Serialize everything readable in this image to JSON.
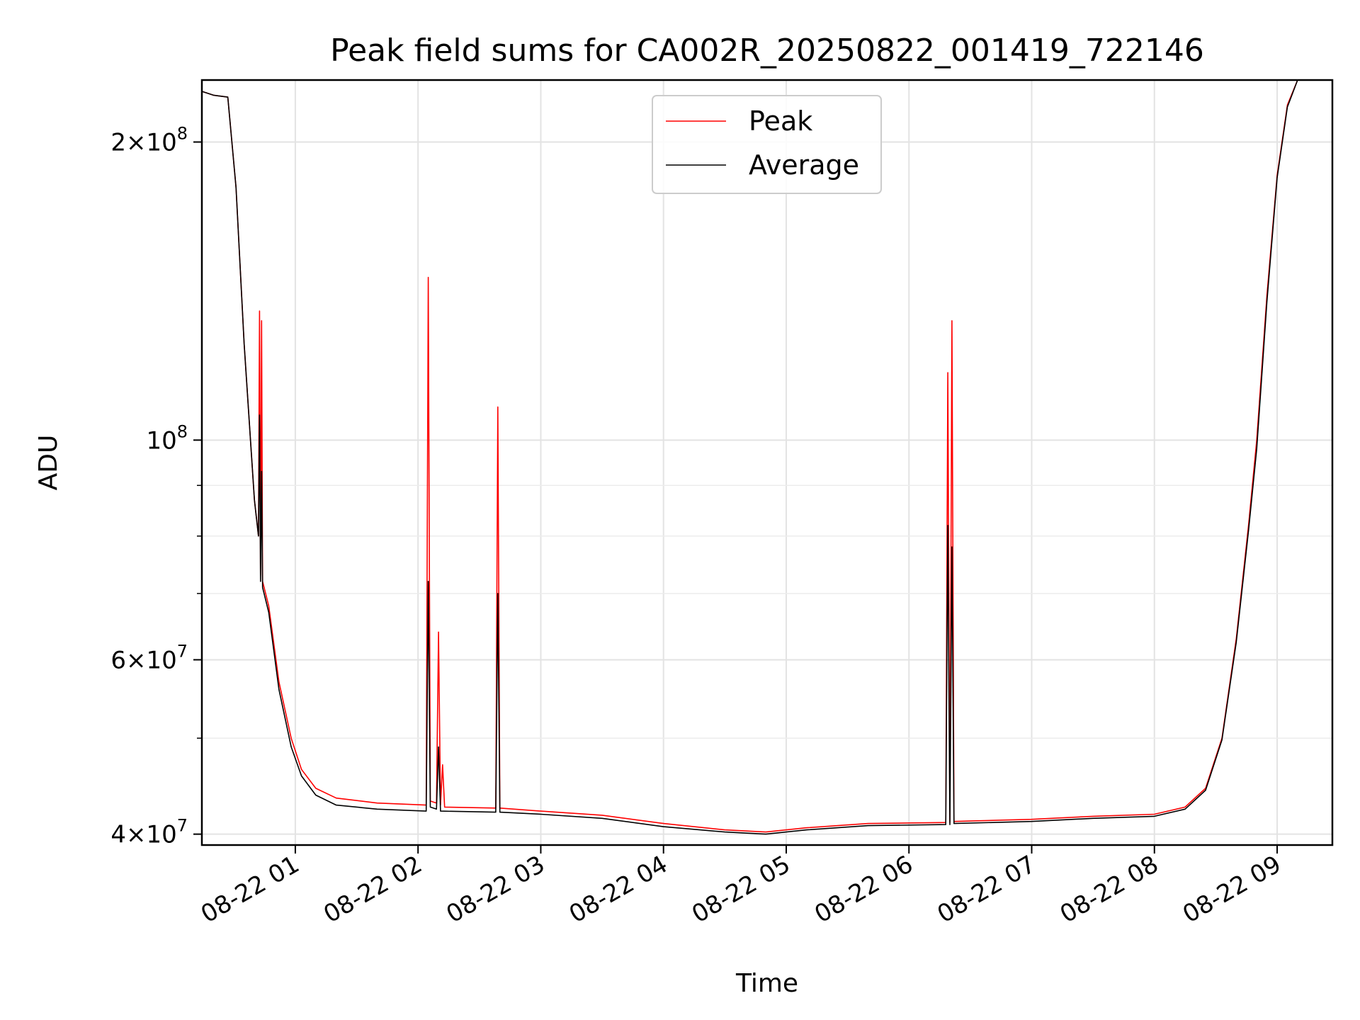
{
  "chart_data": {
    "type": "line",
    "title": "Peak field sums for CA002R_20250822_001419_722146",
    "xlabel": "Time",
    "ylabel": "ADU",
    "x_range": [
      "2025-08-22T00:14:19",
      "2025-08-22T09:27:00"
    ],
    "y_scale": "log",
    "ylim": [
      39000000,
      231000000
    ],
    "grid": true,
    "legend_position": "top-center",
    "x_ticks": [
      {
        "value": "2025-08-22T01:00:00",
        "label": "08-22 01"
      },
      {
        "value": "2025-08-22T02:00:00",
        "label": "08-22 02"
      },
      {
        "value": "2025-08-22T03:00:00",
        "label": "08-22 03"
      },
      {
        "value": "2025-08-22T04:00:00",
        "label": "08-22 04"
      },
      {
        "value": "2025-08-22T05:00:00",
        "label": "08-22 05"
      },
      {
        "value": "2025-08-22T06:00:00",
        "label": "08-22 06"
      },
      {
        "value": "2025-08-22T07:00:00",
        "label": "08-22 07"
      },
      {
        "value": "2025-08-22T08:00:00",
        "label": "08-22 08"
      },
      {
        "value": "2025-08-22T09:00:00",
        "label": "08-22 09"
      }
    ],
    "y_ticks": [
      {
        "value": 40000000,
        "mantissa": "4",
        "exponent": "7"
      },
      {
        "value": 60000000,
        "mantissa": "6",
        "exponent": "7"
      },
      {
        "value": 100000000,
        "mantissa": "",
        "exponent": "8"
      },
      {
        "value": 200000000,
        "mantissa": "2",
        "exponent": "8"
      }
    ],
    "y_minor_ticks": [
      50000000,
      70000000,
      80000000,
      90000000
    ],
    "series": [
      {
        "name": "Peak",
        "color": "#ff0000",
        "points": [
          [
            "2025-08-22T00:14:19",
            225000000
          ],
          [
            "2025-08-22T00:20:00",
            223000000
          ],
          [
            "2025-08-22T00:27:00",
            222000000
          ],
          [
            "2025-08-22T00:31:00",
            180000000
          ],
          [
            "2025-08-22T00:35:00",
            125000000
          ],
          [
            "2025-08-22T00:40:00",
            87000000
          ],
          [
            "2025-08-22T00:42:00",
            80000000
          ],
          [
            "2025-08-22T00:42:30",
            135000000
          ],
          [
            "2025-08-22T00:43:00",
            73000000
          ],
          [
            "2025-08-22T00:43:30",
            132000000
          ],
          [
            "2025-08-22T00:44:00",
            72000000
          ],
          [
            "2025-08-22T00:47:00",
            68000000
          ],
          [
            "2025-08-22T00:52:00",
            57000000
          ],
          [
            "2025-08-22T00:58:00",
            50000000
          ],
          [
            "2025-08-22T01:03:00",
            46500000
          ],
          [
            "2025-08-22T01:10:00",
            44500000
          ],
          [
            "2025-08-22T01:20:00",
            43500000
          ],
          [
            "2025-08-22T01:40:00",
            43000000
          ],
          [
            "2025-08-22T02:04:00",
            42800000
          ],
          [
            "2025-08-22T02:05:00",
            146000000
          ],
          [
            "2025-08-22T02:06:00",
            43200000
          ],
          [
            "2025-08-22T02:09:00",
            43000000
          ],
          [
            "2025-08-22T02:10:00",
            64000000
          ],
          [
            "2025-08-22T02:11:00",
            42800000
          ],
          [
            "2025-08-22T02:12:00",
            47000000
          ],
          [
            "2025-08-22T02:13:00",
            42600000
          ],
          [
            "2025-08-22T02:38:00",
            42500000
          ],
          [
            "2025-08-22T02:39:00",
            108000000
          ],
          [
            "2025-08-22T02:40:00",
            42500000
          ],
          [
            "2025-08-22T03:00:00",
            42200000
          ],
          [
            "2025-08-22T03:30:00",
            41800000
          ],
          [
            "2025-08-22T04:00:00",
            41000000
          ],
          [
            "2025-08-22T04:30:00",
            40400000
          ],
          [
            "2025-08-22T04:50:00",
            40200000
          ],
          [
            "2025-08-22T05:10:00",
            40600000
          ],
          [
            "2025-08-22T05:40:00",
            41000000
          ],
          [
            "2025-08-22T06:18:00",
            41100000
          ],
          [
            "2025-08-22T06:19:00",
            117000000
          ],
          [
            "2025-08-22T06:20:00",
            41100000
          ],
          [
            "2025-08-22T06:21:00",
            132000000
          ],
          [
            "2025-08-22T06:22:00",
            41200000
          ],
          [
            "2025-08-22T07:00:00",
            41400000
          ],
          [
            "2025-08-22T07:30:00",
            41700000
          ],
          [
            "2025-08-22T08:00:00",
            41900000
          ],
          [
            "2025-08-22T08:15:00",
            42600000
          ],
          [
            "2025-08-22T08:25:00",
            44500000
          ],
          [
            "2025-08-22T08:33:00",
            50000000
          ],
          [
            "2025-08-22T08:40:00",
            63000000
          ],
          [
            "2025-08-22T08:46:00",
            82000000
          ],
          [
            "2025-08-22T08:50:00",
            100000000
          ],
          [
            "2025-08-22T08:55:00",
            140000000
          ],
          [
            "2025-08-22T09:00:00",
            185000000
          ],
          [
            "2025-08-22T09:05:00",
            218000000
          ],
          [
            "2025-08-22T09:10:00",
            231000000
          ],
          [
            "2025-08-22T09:27:00",
            231000000
          ]
        ]
      },
      {
        "name": "Average",
        "color": "#000000",
        "points": [
          [
            "2025-08-22T00:14:19",
            225000000
          ],
          [
            "2025-08-22T00:20:00",
            223000000
          ],
          [
            "2025-08-22T00:27:00",
            222000000
          ],
          [
            "2025-08-22T00:31:00",
            180000000
          ],
          [
            "2025-08-22T00:35:00",
            125000000
          ],
          [
            "2025-08-22T00:40:00",
            87000000
          ],
          [
            "2025-08-22T00:42:00",
            80000000
          ],
          [
            "2025-08-22T00:42:30",
            106000000
          ],
          [
            "2025-08-22T00:43:00",
            72000000
          ],
          [
            "2025-08-22T00:43:30",
            93000000
          ],
          [
            "2025-08-22T00:44:00",
            71000000
          ],
          [
            "2025-08-22T00:47:00",
            67000000
          ],
          [
            "2025-08-22T00:52:00",
            56000000
          ],
          [
            "2025-08-22T00:58:00",
            49000000
          ],
          [
            "2025-08-22T01:03:00",
            45800000
          ],
          [
            "2025-08-22T01:10:00",
            43800000
          ],
          [
            "2025-08-22T01:20:00",
            42800000
          ],
          [
            "2025-08-22T01:40:00",
            42400000
          ],
          [
            "2025-08-22T02:04:00",
            42200000
          ],
          [
            "2025-08-22T02:05:00",
            72000000
          ],
          [
            "2025-08-22T02:06:00",
            42600000
          ],
          [
            "2025-08-22T02:09:00",
            42400000
          ],
          [
            "2025-08-22T02:10:00",
            49000000
          ],
          [
            "2025-08-22T02:11:00",
            42200000
          ],
          [
            "2025-08-22T02:38:00",
            42100000
          ],
          [
            "2025-08-22T02:39:00",
            70000000
          ],
          [
            "2025-08-22T02:40:00",
            42100000
          ],
          [
            "2025-08-22T03:00:00",
            41900000
          ],
          [
            "2025-08-22T03:30:00",
            41500000
          ],
          [
            "2025-08-22T04:00:00",
            40700000
          ],
          [
            "2025-08-22T04:30:00",
            40200000
          ],
          [
            "2025-08-22T04:50:00",
            40000000
          ],
          [
            "2025-08-22T05:10:00",
            40400000
          ],
          [
            "2025-08-22T05:40:00",
            40800000
          ],
          [
            "2025-08-22T06:18:00",
            40900000
          ],
          [
            "2025-08-22T06:19:00",
            82000000
          ],
          [
            "2025-08-22T06:20:00",
            40900000
          ],
          [
            "2025-08-22T06:21:00",
            78000000
          ],
          [
            "2025-08-22T06:22:00",
            41000000
          ],
          [
            "2025-08-22T07:00:00",
            41200000
          ],
          [
            "2025-08-22T07:30:00",
            41500000
          ],
          [
            "2025-08-22T08:00:00",
            41700000
          ],
          [
            "2025-08-22T08:15:00",
            42400000
          ],
          [
            "2025-08-22T08:25:00",
            44300000
          ],
          [
            "2025-08-22T08:33:00",
            49800000
          ],
          [
            "2025-08-22T08:40:00",
            62500000
          ],
          [
            "2025-08-22T08:46:00",
            81000000
          ],
          [
            "2025-08-22T08:50:00",
            98000000
          ],
          [
            "2025-08-22T08:55:00",
            138000000
          ],
          [
            "2025-08-22T09:00:00",
            184000000
          ],
          [
            "2025-08-22T09:05:00",
            217000000
          ],
          [
            "2025-08-22T09:10:00",
            231000000
          ],
          [
            "2025-08-22T09:27:00",
            231000000
          ]
        ]
      }
    ]
  }
}
